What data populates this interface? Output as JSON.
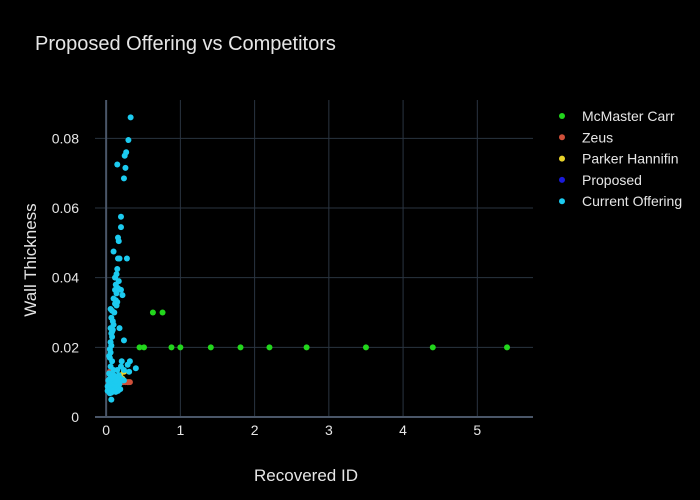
{
  "chart_data": {
    "type": "scatter",
    "title": "Proposed Offering vs Competitors",
    "xlabel": "Recovered ID",
    "ylabel": "Wall Thickness",
    "xlim": [
      -0.15,
      5.75
    ],
    "ylim": [
      0,
      0.091
    ],
    "xticks": [
      0,
      1,
      2,
      3,
      4,
      5
    ],
    "yticks": [
      0,
      0.02,
      0.04,
      0.06,
      0.08
    ],
    "ytick_labels": [
      "0",
      "0.02",
      "0.04",
      "0.06",
      "0.08"
    ],
    "grid": true,
    "legend_position": "right",
    "series": [
      {
        "name": "McMaster Carr",
        "color": "#22d61c",
        "points": [
          [
            0.06,
            0.01
          ],
          [
            0.08,
            0.011
          ],
          [
            0.1,
            0.009
          ],
          [
            0.12,
            0.01
          ],
          [
            0.3,
            0.01
          ],
          [
            0.45,
            0.02
          ],
          [
            0.51,
            0.02
          ],
          [
            0.63,
            0.03
          ],
          [
            0.76,
            0.03
          ],
          [
            0.88,
            0.02
          ],
          [
            1.0,
            0.02
          ],
          [
            1.41,
            0.02
          ],
          [
            1.81,
            0.02
          ],
          [
            2.2,
            0.02
          ],
          [
            2.7,
            0.02
          ],
          [
            3.5,
            0.02
          ],
          [
            4.4,
            0.02
          ],
          [
            5.4,
            0.02
          ]
        ]
      },
      {
        "name": "Zeus",
        "color": "#d0503a",
        "points": [
          [
            0.05,
            0.013
          ],
          [
            0.07,
            0.012
          ],
          [
            0.09,
            0.011
          ],
          [
            0.11,
            0.01
          ],
          [
            0.14,
            0.01
          ],
          [
            0.17,
            0.01
          ],
          [
            0.2,
            0.01
          ],
          [
            0.23,
            0.01
          ],
          [
            0.26,
            0.01
          ],
          [
            0.29,
            0.01
          ],
          [
            0.32,
            0.01
          ]
        ]
      },
      {
        "name": "Parker Hannifin",
        "color": "#e8d32a",
        "points": [
          [
            0.1,
            0.01
          ],
          [
            0.13,
            0.011
          ],
          [
            0.16,
            0.01
          ],
          [
            0.19,
            0.012
          ],
          [
            0.22,
            0.011
          ],
          [
            0.24,
            0.013
          ]
        ]
      },
      {
        "name": "Proposed",
        "color": "#1a1adb",
        "points": [
          [
            0.12,
            0.009
          ],
          [
            0.15,
            0.009
          ]
        ]
      },
      {
        "name": "Current Offering",
        "color": "#1ccbf0",
        "points": [
          [
            0.33,
            0.086
          ],
          [
            0.3,
            0.0795
          ],
          [
            0.27,
            0.076
          ],
          [
            0.25,
            0.075
          ],
          [
            0.15,
            0.0725
          ],
          [
            0.26,
            0.0715
          ],
          [
            0.24,
            0.0685
          ],
          [
            0.2,
            0.0575
          ],
          [
            0.2,
            0.0545
          ],
          [
            0.16,
            0.0515
          ],
          [
            0.17,
            0.0505
          ],
          [
            0.1,
            0.0475
          ],
          [
            0.16,
            0.0455
          ],
          [
            0.18,
            0.0455
          ],
          [
            0.28,
            0.0455
          ],
          [
            0.15,
            0.0425
          ],
          [
            0.14,
            0.041
          ],
          [
            0.12,
            0.04
          ],
          [
            0.17,
            0.039
          ],
          [
            0.13,
            0.038
          ],
          [
            0.16,
            0.037
          ],
          [
            0.12,
            0.0365
          ],
          [
            0.2,
            0.0365
          ],
          [
            0.14,
            0.0355
          ],
          [
            0.22,
            0.035
          ],
          [
            0.1,
            0.034
          ],
          [
            0.13,
            0.0335
          ],
          [
            0.15,
            0.033
          ],
          [
            0.12,
            0.0325
          ],
          [
            0.14,
            0.032
          ],
          [
            0.06,
            0.031
          ],
          [
            0.08,
            0.0305
          ],
          [
            0.11,
            0.03
          ],
          [
            0.07,
            0.0285
          ],
          [
            0.09,
            0.0275
          ],
          [
            0.1,
            0.0265
          ],
          [
            0.18,
            0.0255
          ],
          [
            0.06,
            0.0255
          ],
          [
            0.09,
            0.025
          ],
          [
            0.08,
            0.0245
          ],
          [
            0.07,
            0.024
          ],
          [
            0.08,
            0.023
          ],
          [
            0.24,
            0.022
          ],
          [
            0.06,
            0.0215
          ],
          [
            0.07,
            0.0205
          ],
          [
            0.05,
            0.0195
          ],
          [
            0.06,
            0.0185
          ],
          [
            0.04,
            0.0175
          ],
          [
            0.05,
            0.017
          ],
          [
            0.08,
            0.016
          ],
          [
            0.21,
            0.016
          ],
          [
            0.32,
            0.016
          ],
          [
            0.29,
            0.015
          ],
          [
            0.2,
            0.0145
          ],
          [
            0.4,
            0.014
          ],
          [
            0.06,
            0.0145
          ],
          [
            0.1,
            0.0135
          ],
          [
            0.15,
            0.0135
          ],
          [
            0.24,
            0.0135
          ],
          [
            0.31,
            0.013
          ],
          [
            0.04,
            0.0125
          ],
          [
            0.1,
            0.012
          ],
          [
            0.17,
            0.012
          ],
          [
            0.08,
            0.0115
          ],
          [
            0.14,
            0.0115
          ],
          [
            0.05,
            0.011
          ],
          [
            0.12,
            0.011
          ],
          [
            0.2,
            0.011
          ],
          [
            0.03,
            0.0105
          ],
          [
            0.09,
            0.0105
          ],
          [
            0.16,
            0.0105
          ],
          [
            0.24,
            0.0105
          ],
          [
            0.06,
            0.01
          ],
          [
            0.13,
            0.01
          ],
          [
            0.04,
            0.0095
          ],
          [
            0.11,
            0.0095
          ],
          [
            0.18,
            0.0095
          ],
          [
            0.07,
            0.009
          ],
          [
            0.02,
            0.0088
          ],
          [
            0.1,
            0.0088
          ],
          [
            0.15,
            0.0088
          ],
          [
            0.05,
            0.0085
          ],
          [
            0.12,
            0.0085
          ],
          [
            0.03,
            0.008
          ],
          [
            0.08,
            0.008
          ],
          [
            0.14,
            0.008
          ],
          [
            0.19,
            0.008
          ],
          [
            0.06,
            0.0078
          ],
          [
            0.11,
            0.0078
          ],
          [
            0.02,
            0.0075
          ],
          [
            0.09,
            0.0075
          ],
          [
            0.16,
            0.0075
          ],
          [
            0.04,
            0.0072
          ],
          [
            0.13,
            0.0072
          ],
          [
            0.07,
            0.007
          ],
          [
            0.05,
            0.0068
          ],
          [
            0.07,
            0.005
          ]
        ]
      }
    ]
  }
}
